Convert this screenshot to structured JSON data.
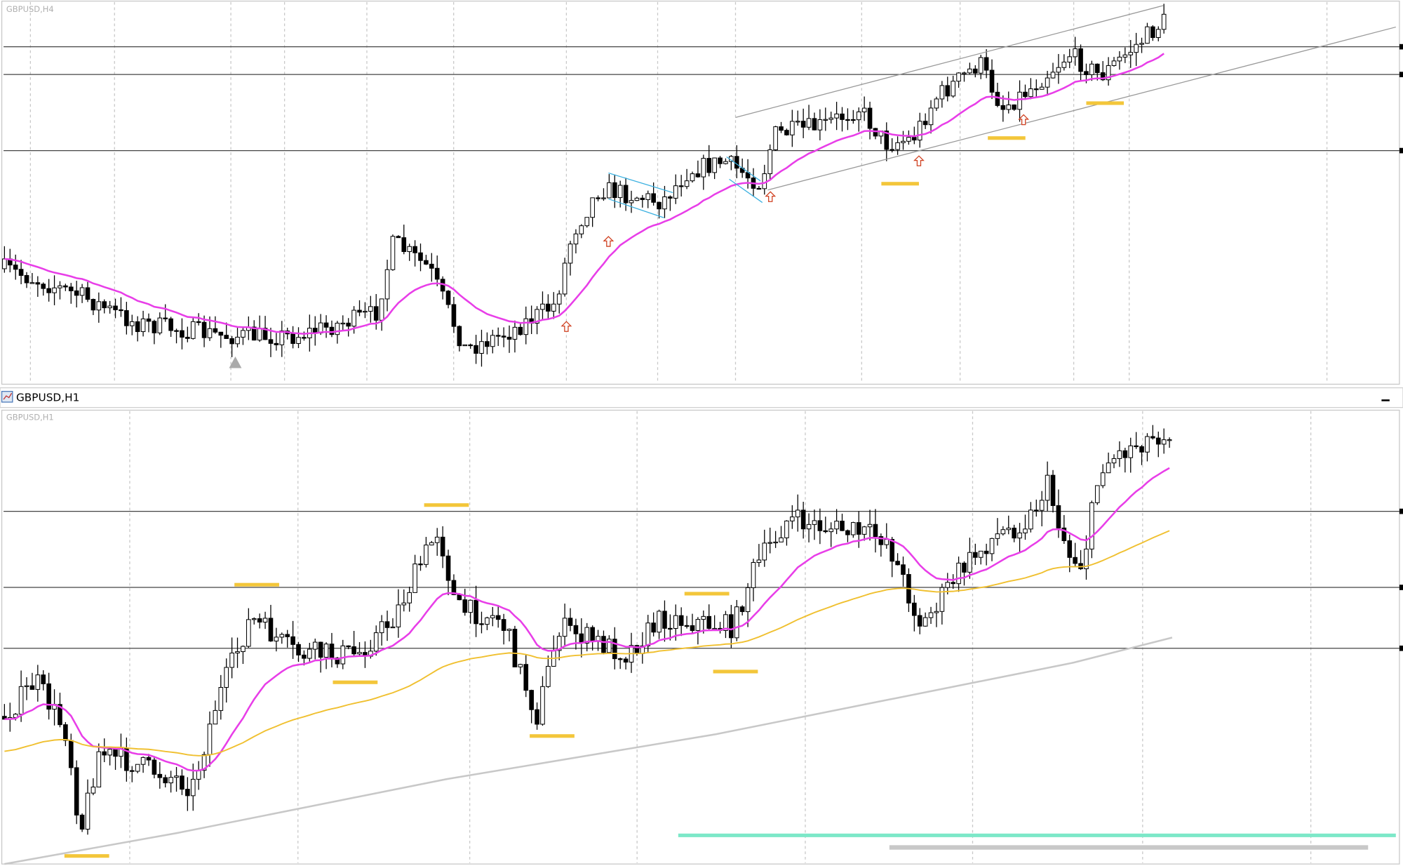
{
  "window": {
    "top_label": "GBPUSD,H4",
    "title": "GBPUSD,H1",
    "bottom_label": "GBPUSD,H1"
  }
}
